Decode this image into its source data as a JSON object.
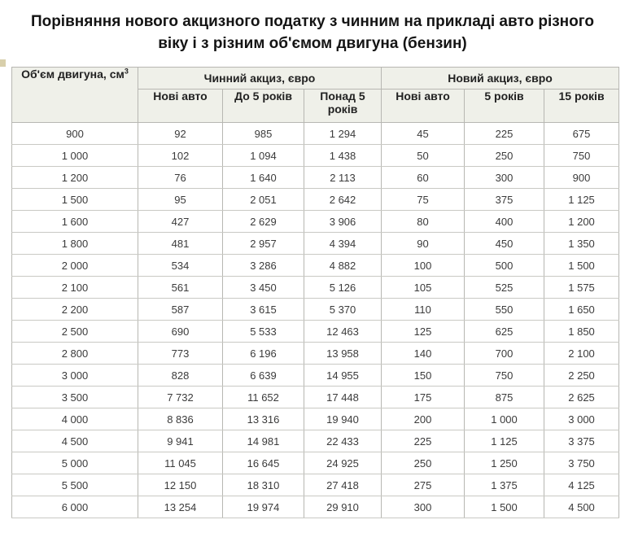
{
  "page": {
    "title": "Порівняння нового акцизного податку з чинним на прикладі авто різного віку і з різним об'ємом двигуна (бензин)"
  },
  "table": {
    "engine_header": "Об'єм двигуна, см",
    "engine_header_sup": "3",
    "group_current": "Чинний акциз, євро",
    "group_new": "Новий акциз, євро",
    "sub_current": [
      "Нові авто",
      "До 5 років",
      "Понад 5 років"
    ],
    "sub_new": [
      "Нові авто",
      "5 років",
      "15 років"
    ],
    "rows": [
      [
        "900",
        "92",
        "985",
        "1 294",
        "45",
        "225",
        "675"
      ],
      [
        "1 000",
        "102",
        "1 094",
        "1 438",
        "50",
        "250",
        "750"
      ],
      [
        "1 200",
        "76",
        "1 640",
        "2 113",
        "60",
        "300",
        "900"
      ],
      [
        "1 500",
        "95",
        "2 051",
        "2 642",
        "75",
        "375",
        "1 125"
      ],
      [
        "1 600",
        "427",
        "2 629",
        "3 906",
        "80",
        "400",
        "1 200"
      ],
      [
        "1 800",
        "481",
        "2 957",
        "4 394",
        "90",
        "450",
        "1 350"
      ],
      [
        "2 000",
        "534",
        "3 286",
        "4 882",
        "100",
        "500",
        "1 500"
      ],
      [
        "2 100",
        "561",
        "3 450",
        "5 126",
        "105",
        "525",
        "1 575"
      ],
      [
        "2 200",
        "587",
        "3 615",
        "5 370",
        "110",
        "550",
        "1 650"
      ],
      [
        "2 500",
        "690",
        "5 533",
        "12 463",
        "125",
        "625",
        "1 850"
      ],
      [
        "2 800",
        "773",
        "6 196",
        "13 958",
        "140",
        "700",
        "2 100"
      ],
      [
        "3 000",
        "828",
        "6 639",
        "14 955",
        "150",
        "750",
        "2 250"
      ],
      [
        "3 500",
        "7 732",
        "11 652",
        "17 448",
        "175",
        "875",
        "2 625"
      ],
      [
        "4 000",
        "8 836",
        "13 316",
        "19 940",
        "200",
        "1 000",
        "3 000"
      ],
      [
        "4 500",
        "9 941",
        "14 981",
        "22 433",
        "225",
        "1 125",
        "3 375"
      ],
      [
        "5 000",
        "11 045",
        "16 645",
        "24 925",
        "250",
        "1 250",
        "3 750"
      ],
      [
        "5 500",
        "12 150",
        "18 310",
        "27 418",
        "275",
        "1 375",
        "4 125"
      ],
      [
        "6 000",
        "13 254",
        "19 974",
        "29 910",
        "300",
        "1 500",
        "4 500"
      ]
    ]
  },
  "colors": {
    "header_bg": "#eff0e9",
    "outer_border": "#8d8d8a",
    "inner_border": "#b7b7b2",
    "title_text": "#141414",
    "cell_text": "#3b3b3b",
    "artifact_beige": "#d8cfab"
  },
  "chart_data": {
    "type": "table",
    "title": "Порівняння нового акцизного податку з чинним на прикладі авто різного віку і з різним об'ємом двигуна (бензин)",
    "column_groups": [
      {
        "label": "Об'єм двигуна, см3",
        "columns": [
          "Об'єм двигуна, см3"
        ]
      },
      {
        "label": "Чинний акциз, євро",
        "columns": [
          "Нові авто",
          "До 5 років",
          "Понад 5 років"
        ]
      },
      {
        "label": "Новий акциз, євро",
        "columns": [
          "Нові авто",
          "5 років",
          "15 років"
        ]
      }
    ],
    "engine_volume_cm3": [
      900,
      1000,
      1200,
      1500,
      1600,
      1800,
      2000,
      2100,
      2200,
      2500,
      2800,
      3000,
      3500,
      4000,
      4500,
      5000,
      5500,
      6000
    ],
    "series": [
      {
        "name": "Чинний акциз — Нові авто",
        "values": [
          92,
          102,
          76,
          95,
          427,
          481,
          534,
          561,
          587,
          690,
          773,
          828,
          7732,
          8836,
          9941,
          11045,
          12150,
          13254
        ]
      },
      {
        "name": "Чинний акциз — До 5 років",
        "values": [
          985,
          1094,
          1640,
          2051,
          2629,
          2957,
          3286,
          3450,
          3615,
          5533,
          6196,
          6639,
          11652,
          13316,
          14981,
          16645,
          18310,
          19974
        ]
      },
      {
        "name": "Чинний акциз — Понад 5 років",
        "values": [
          1294,
          1438,
          2113,
          2642,
          3906,
          4394,
          4882,
          5126,
          5370,
          12463,
          13958,
          14955,
          17448,
          19940,
          22433,
          24925,
          27418,
          29910
        ]
      },
      {
        "name": "Новий акциз — Нові авто",
        "values": [
          45,
          50,
          60,
          75,
          80,
          90,
          100,
          105,
          110,
          125,
          140,
          150,
          175,
          200,
          225,
          250,
          275,
          300
        ]
      },
      {
        "name": "Новий акциз — 5 років",
        "values": [
          225,
          250,
          300,
          375,
          400,
          450,
          500,
          525,
          550,
          625,
          700,
          750,
          875,
          1000,
          1125,
          1250,
          1375,
          1500
        ]
      },
      {
        "name": "Новий акциз — 15 років",
        "values": [
          675,
          750,
          900,
          1125,
          1200,
          1350,
          1500,
          1575,
          1650,
          1850,
          2100,
          2250,
          2625,
          3000,
          3375,
          3750,
          4125,
          4500
        ]
      }
    ],
    "units": "євро"
  }
}
